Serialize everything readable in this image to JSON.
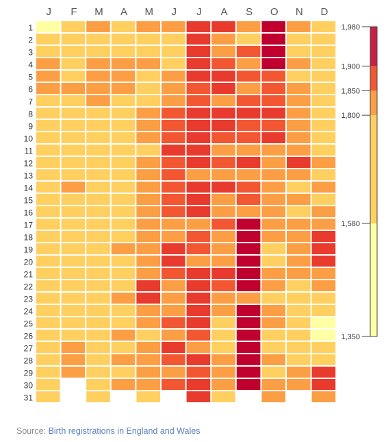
{
  "chart_data": {
    "type": "heatmap",
    "x": [
      "J",
      "F",
      "M",
      "A",
      "M",
      "J",
      "J",
      "A",
      "S",
      "O",
      "N",
      "D"
    ],
    "y": [
      "1",
      "2",
      "3",
      "4",
      "5",
      "6",
      "7",
      "8",
      "9",
      "10",
      "11",
      "12",
      "13",
      "14",
      "15",
      "16",
      "17",
      "18",
      "19",
      "20",
      "21",
      "22",
      "23",
      "24",
      "25",
      "26",
      "27",
      "28",
      "29",
      "30",
      "31"
    ],
    "levels": [
      "y",
      "o",
      "O",
      "R",
      "D",
      "C"
    ],
    "level_colors": {
      "y": "#ffd060",
      "o": "#fc9e44",
      "O": "#f88c41",
      "R": "#f25732",
      "D": "#e93a2e",
      "C": "#c0002f",
      "L": "#ffffa3"
    },
    "rows": [
      "LyoyooDDoCoy",
      "yyyyyyDoyCyy",
      "yyyyyyDoRCyy",
      "oyoooyDRoCoy",
      "oyooyoDDRRyy",
      "ooooyoRDoRoy",
      "yyoyyoRoRRoy",
      "yyyyoRDDDDoy",
      "yyyyoRDDRRoy",
      "yyyyoRDRRDoy",
      "yyyyyDDooooy",
      "yyyyoRDRDoDo",
      "yyyyoRoooooy",
      "yoyyoRDDRoyo",
      "yyyyoRDoRooy",
      "yyyyoRDoooyo",
      "yyyyoooRCooo",
      "yyyyooRoCooD",
      "yyyooDRoCyoD",
      "yyyyoDooCyoD",
      "yyyyoRDDCooo",
      "yyyyDoDRCoyo",
      "yyyoDoDooyyy",
      "yyyyooDoCoyy",
      "yyyyoRDyCoyL",
      "yyyoyoRyCyyL",
      "yoyyoDoyCyyy",
      "yoyooRDoCoyy",
      "yoyyooRoCyoD",
      "y-yooRDoCooD",
      "y-y-y-Dy-o-o"
    ],
    "color_scale": {
      "ticks": [
        1980,
        1900,
        1850,
        1800,
        1580,
        1350
      ],
      "tick_labels": [
        "1,980",
        "1,900",
        "1,850",
        "1,800",
        "1,580",
        "1,350"
      ],
      "range": [
        1350,
        1980
      ]
    }
  },
  "source": {
    "prefix": "Source: ",
    "link_text": "Birth registrations in England and Wales"
  }
}
